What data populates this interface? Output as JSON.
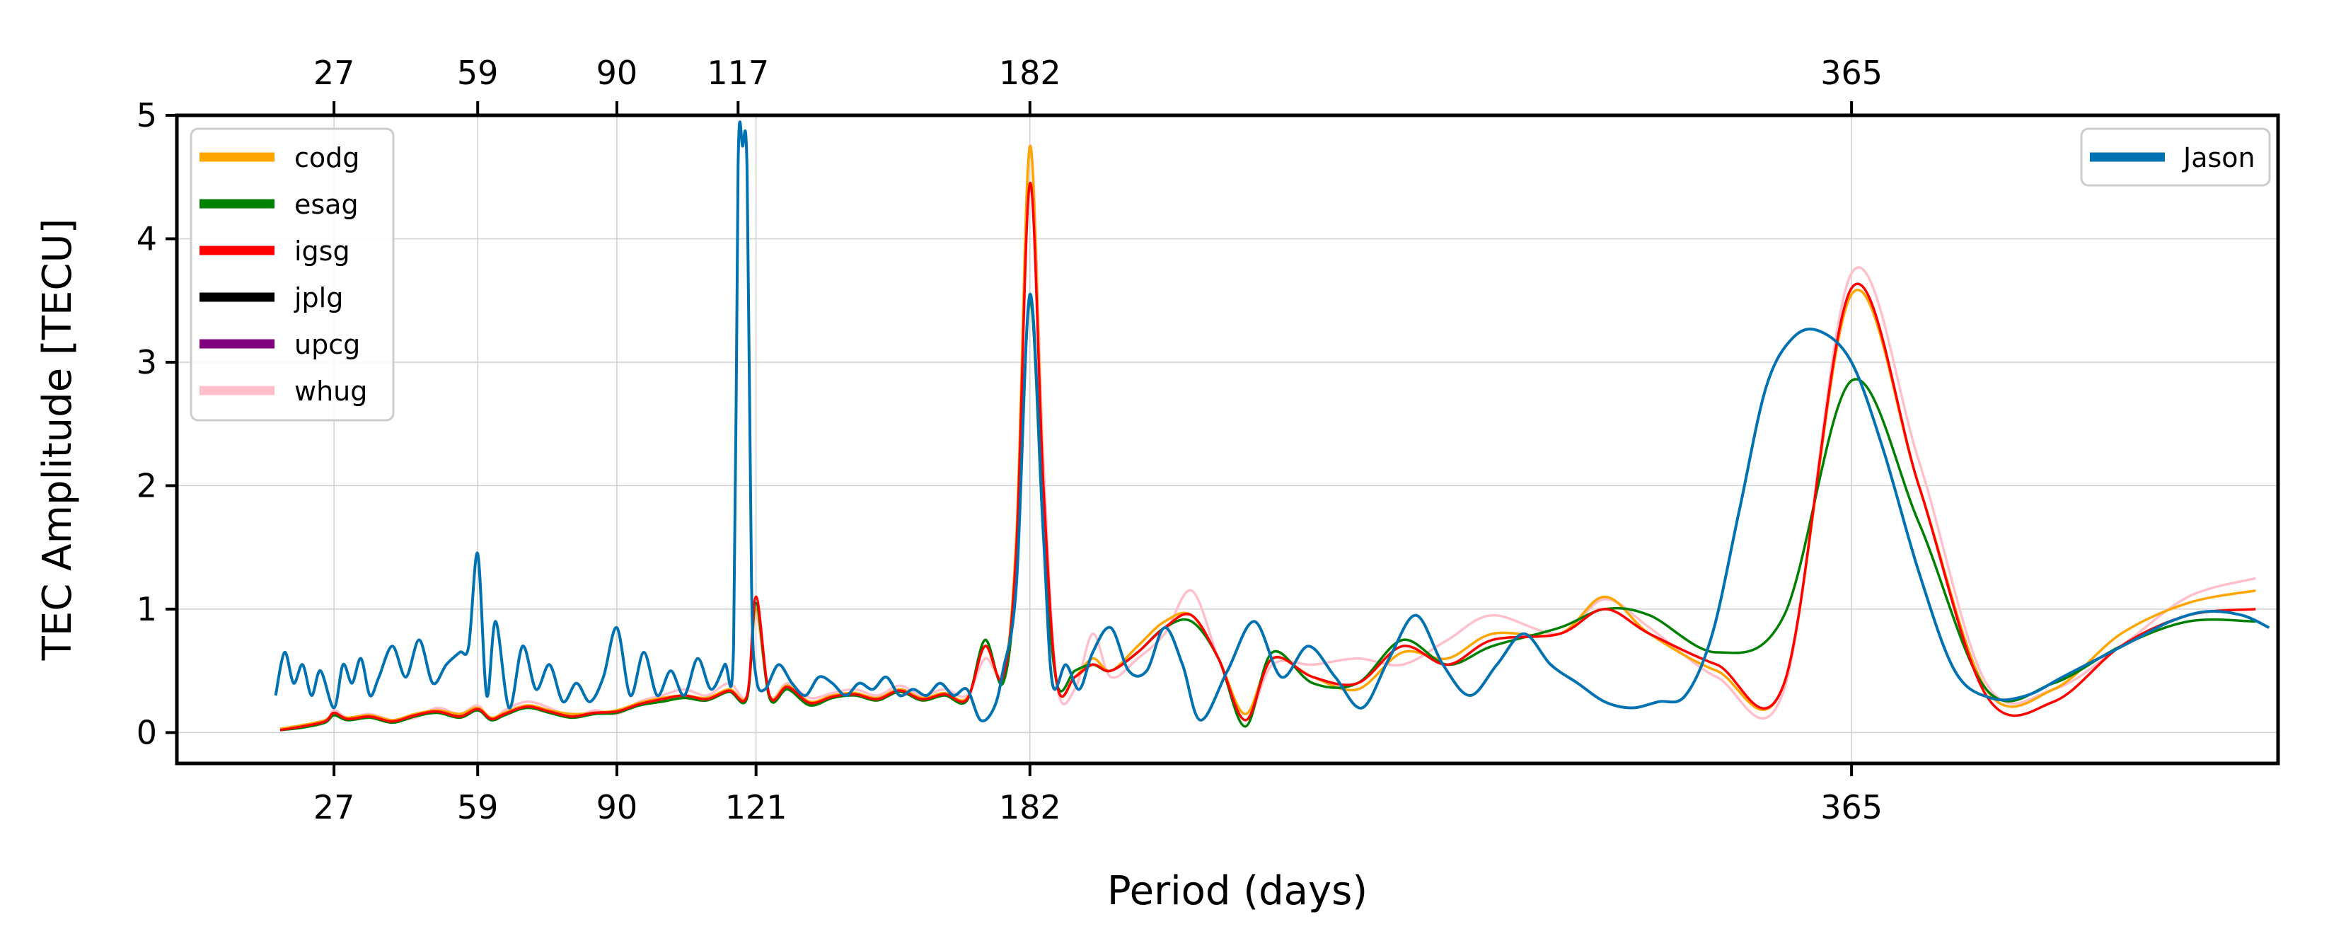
{
  "chart_data": {
    "type": "line",
    "title": "",
    "xlabel": "Period (days)",
    "ylabel": "TEC Amplitude [TECU]",
    "xlim": [
      -8,
      460
    ],
    "ylim": [
      -0.25,
      5
    ],
    "yticks": [
      0,
      1,
      2,
      3,
      4,
      5
    ],
    "top_xticks": [
      27,
      59,
      90,
      117,
      182,
      365
    ],
    "bottom_xticks": [
      27,
      59,
      90,
      121,
      182,
      365
    ],
    "grid": true,
    "legend_left": [
      "codg",
      "esag",
      "igsg",
      "jplg",
      "upcg",
      "whug"
    ],
    "legend_right": [
      "Jason"
    ],
    "colors": {
      "codg": "#FFA500",
      "esag": "#008000",
      "igsg": "#FF0000",
      "jplg": "#000000",
      "upcg": "#800080",
      "whug": "#FFC0CB",
      "Jason": "#0072B2"
    },
    "series": [
      {
        "name": "whug",
        "x": [
          15,
          20,
          25,
          27,
          30,
          35,
          40,
          45,
          50,
          55,
          59,
          62,
          65,
          70,
          75,
          80,
          85,
          90,
          95,
          100,
          105,
          110,
          115,
          119,
          121,
          124,
          128,
          133,
          138,
          143,
          148,
          153,
          158,
          163,
          168,
          172,
          176,
          179,
          182,
          185,
          188,
          192,
          196,
          200,
          206,
          212,
          218,
          224,
          230,
          236,
          245,
          255,
          265,
          275,
          285,
          300,
          310,
          320,
          335,
          350,
          365,
          380,
          395,
          410,
          425,
          440,
          455
        ],
        "values": [
          0.02,
          0.05,
          0.08,
          0.18,
          0.12,
          0.15,
          0.1,
          0.12,
          0.2,
          0.15,
          0.22,
          0.1,
          0.18,
          0.25,
          0.2,
          0.12,
          0.18,
          0.15,
          0.25,
          0.3,
          0.35,
          0.3,
          0.4,
          0.3,
          0.95,
          0.3,
          0.4,
          0.28,
          0.32,
          0.35,
          0.3,
          0.38,
          0.3,
          0.35,
          0.3,
          0.6,
          0.5,
          1.5,
          4.75,
          2.2,
          0.4,
          0.35,
          0.8,
          0.45,
          0.6,
          0.8,
          1.15,
          0.6,
          0.1,
          0.55,
          0.55,
          0.6,
          0.55,
          0.75,
          0.95,
          0.8,
          1.08,
          0.85,
          0.45,
          0.35,
          3.72,
          2.2,
          0.4,
          0.35,
          0.7,
          1.1,
          1.25
        ]
      },
      {
        "name": "codg",
        "x": [
          15,
          20,
          25,
          27,
          30,
          35,
          40,
          45,
          50,
          55,
          59,
          62,
          65,
          70,
          75,
          80,
          85,
          90,
          95,
          100,
          105,
          110,
          115,
          119,
          121,
          124,
          128,
          133,
          138,
          143,
          148,
          153,
          158,
          163,
          168,
          172,
          176,
          179,
          182,
          185,
          188,
          192,
          196,
          200,
          206,
          212,
          218,
          224,
          230,
          236,
          245,
          255,
          265,
          275,
          285,
          300,
          310,
          320,
          335,
          350,
          365,
          380,
          395,
          410,
          425,
          440,
          455
        ],
        "values": [
          0.03,
          0.06,
          0.1,
          0.15,
          0.12,
          0.14,
          0.1,
          0.15,
          0.18,
          0.15,
          0.2,
          0.12,
          0.16,
          0.22,
          0.18,
          0.15,
          0.16,
          0.18,
          0.24,
          0.28,
          0.3,
          0.28,
          0.35,
          0.3,
          1.0,
          0.3,
          0.38,
          0.25,
          0.3,
          0.32,
          0.28,
          0.35,
          0.28,
          0.32,
          0.28,
          0.7,
          0.45,
          1.6,
          4.75,
          2.0,
          0.4,
          0.45,
          0.6,
          0.5,
          0.7,
          0.9,
          0.95,
          0.6,
          0.15,
          0.6,
          0.45,
          0.35,
          0.65,
          0.6,
          0.8,
          0.8,
          1.1,
          0.8,
          0.5,
          0.4,
          3.55,
          2.0,
          0.35,
          0.35,
          0.8,
          1.05,
          1.15
        ]
      },
      {
        "name": "esag",
        "x": [
          15,
          20,
          25,
          27,
          30,
          35,
          40,
          45,
          50,
          55,
          59,
          62,
          65,
          70,
          75,
          80,
          85,
          90,
          95,
          100,
          105,
          110,
          115,
          119,
          121,
          124,
          128,
          133,
          138,
          143,
          148,
          153,
          158,
          163,
          168,
          172,
          176,
          179,
          182,
          185,
          188,
          192,
          196,
          200,
          206,
          212,
          218,
          224,
          230,
          236,
          245,
          255,
          265,
          275,
          285,
          300,
          310,
          320,
          335,
          350,
          365,
          380,
          395,
          410,
          425,
          440,
          455
        ],
        "values": [
          0.02,
          0.04,
          0.08,
          0.14,
          0.1,
          0.12,
          0.08,
          0.13,
          0.16,
          0.12,
          0.18,
          0.1,
          0.14,
          0.2,
          0.16,
          0.12,
          0.15,
          0.16,
          0.22,
          0.25,
          0.28,
          0.26,
          0.33,
          0.28,
          1.05,
          0.28,
          0.35,
          0.22,
          0.28,
          0.3,
          0.26,
          0.33,
          0.26,
          0.3,
          0.26,
          0.75,
          0.4,
          1.3,
          3.5,
          1.6,
          0.4,
          0.5,
          0.55,
          0.5,
          0.65,
          0.85,
          0.9,
          0.6,
          0.05,
          0.65,
          0.4,
          0.4,
          0.75,
          0.55,
          0.7,
          0.85,
          1.0,
          0.95,
          0.65,
          0.95,
          2.85,
          1.7,
          0.35,
          0.4,
          0.7,
          0.9,
          0.9
        ]
      },
      {
        "name": "igsg",
        "x": [
          15,
          20,
          25,
          27,
          30,
          35,
          40,
          45,
          50,
          55,
          59,
          62,
          65,
          70,
          75,
          80,
          85,
          90,
          95,
          100,
          105,
          110,
          115,
          119,
          121,
          124,
          128,
          133,
          138,
          143,
          148,
          153,
          158,
          163,
          168,
          172,
          176,
          179,
          182,
          185,
          188,
          192,
          196,
          200,
          206,
          212,
          218,
          224,
          230,
          236,
          245,
          255,
          265,
          275,
          285,
          300,
          310,
          320,
          335,
          350,
          365,
          380,
          395,
          410,
          425,
          440,
          455
        ],
        "values": [
          0.02,
          0.05,
          0.09,
          0.16,
          0.11,
          0.13,
          0.09,
          0.14,
          0.17,
          0.13,
          0.19,
          0.11,
          0.15,
          0.21,
          0.17,
          0.13,
          0.16,
          0.17,
          0.23,
          0.27,
          0.3,
          0.27,
          0.34,
          0.3,
          1.1,
          0.3,
          0.37,
          0.24,
          0.29,
          0.31,
          0.27,
          0.34,
          0.27,
          0.31,
          0.27,
          0.7,
          0.45,
          1.5,
          4.45,
          2.0,
          0.4,
          0.45,
          0.55,
          0.5,
          0.65,
          0.85,
          0.95,
          0.6,
          0.1,
          0.6,
          0.45,
          0.4,
          0.7,
          0.55,
          0.75,
          0.8,
          1.0,
          0.8,
          0.55,
          0.4,
          3.6,
          2.0,
          0.3,
          0.25,
          0.7,
          0.95,
          1.0
        ]
      },
      {
        "name": "Jason",
        "x": [
          14,
          16,
          18,
          20,
          22,
          24,
          27,
          29,
          31,
          33,
          35,
          37,
          40,
          43,
          46,
          49,
          52,
          55,
          57,
          59,
          61,
          63,
          66,
          69,
          72,
          75,
          78,
          81,
          84,
          87,
          90,
          93,
          96,
          99,
          102,
          105,
          108,
          111,
          114,
          116,
          117,
          118,
          119,
          120,
          121,
          123,
          126,
          129,
          132,
          135,
          138,
          141,
          144,
          147,
          150,
          153,
          156,
          159,
          162,
          165,
          168,
          171,
          174,
          176,
          179,
          182,
          185,
          187,
          190,
          193,
          196,
          200,
          204,
          208,
          212,
          216,
          220,
          226,
          232,
          238,
          244,
          250,
          256,
          262,
          268,
          274,
          280,
          286,
          292,
          298,
          304,
          310,
          316,
          322,
          328,
          334,
          340,
          346,
          352,
          358,
          365,
          372,
          380,
          388,
          396,
          404,
          412,
          420,
          428,
          436,
          444,
          452,
          458
        ],
        "values": [
          0.3,
          0.65,
          0.4,
          0.55,
          0.3,
          0.5,
          0.2,
          0.55,
          0.4,
          0.6,
          0.3,
          0.45,
          0.7,
          0.45,
          0.75,
          0.4,
          0.55,
          0.65,
          0.7,
          1.45,
          0.3,
          0.9,
          0.2,
          0.7,
          0.35,
          0.55,
          0.25,
          0.4,
          0.25,
          0.45,
          0.85,
          0.3,
          0.65,
          0.3,
          0.5,
          0.3,
          0.6,
          0.35,
          0.55,
          0.7,
          4.6,
          4.75,
          4.55,
          1.2,
          0.45,
          0.35,
          0.55,
          0.4,
          0.3,
          0.45,
          0.4,
          0.3,
          0.4,
          0.35,
          0.45,
          0.3,
          0.35,
          0.3,
          0.4,
          0.3,
          0.35,
          0.1,
          0.2,
          0.5,
          1.2,
          3.55,
          1.6,
          0.4,
          0.55,
          0.35,
          0.65,
          0.85,
          0.5,
          0.5,
          0.85,
          0.55,
          0.1,
          0.5,
          0.9,
          0.45,
          0.7,
          0.45,
          0.2,
          0.6,
          0.95,
          0.55,
          0.3,
          0.55,
          0.8,
          0.55,
          0.4,
          0.25,
          0.2,
          0.25,
          0.3,
          0.8,
          1.8,
          2.8,
          3.2,
          3.25,
          3.0,
          2.3,
          1.3,
          0.5,
          0.28,
          0.3,
          0.45,
          0.6,
          0.75,
          0.9,
          0.98,
          0.95,
          0.85
        ]
      }
    ]
  }
}
